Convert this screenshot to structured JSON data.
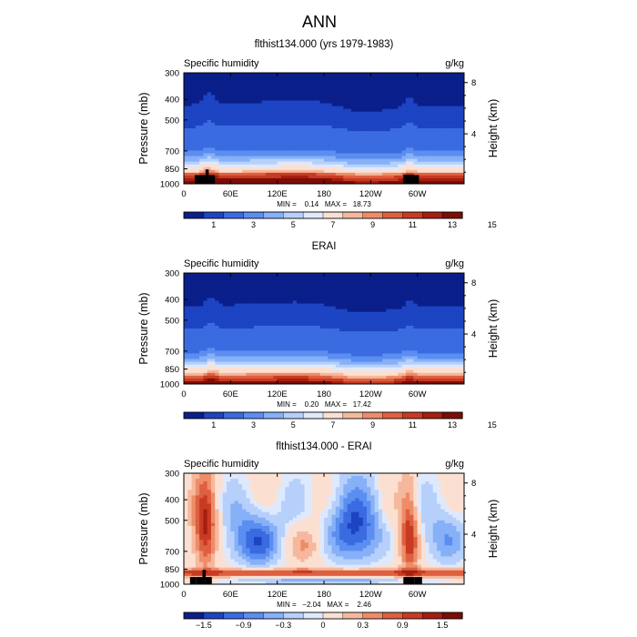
{
  "page": {
    "title": "ANN"
  },
  "chart_data": [
    {
      "type": "heatmap",
      "title": "flthist134.000 (yrs 1979-1983)",
      "variable": "Specific humidity",
      "units": "g/kg",
      "ylabel": "Pressure (mb)",
      "ylabel2": "Height (km)",
      "x_ticks": [
        "0",
        "60E",
        "120E",
        "180",
        "120W",
        "60W"
      ],
      "x_tick_values": [
        0,
        60,
        120,
        180,
        240,
        300
      ],
      "xlim": [
        0,
        360
      ],
      "y_ticks": [
        "300",
        "400",
        "500",
        "700",
        "850",
        "1000"
      ],
      "y_tick_values": [
        300,
        400,
        500,
        700,
        850,
        1000
      ],
      "ylim": [
        1000,
        300
      ],
      "height_ticks": [
        "4",
        "8"
      ],
      "height_tick_values": [
        4,
        8
      ],
      "stats": "MIN =    0.14   MAX =   18.73",
      "min": 0.14,
      "max": 18.73,
      "colorbar_labels": [
        "1",
        "3",
        "5",
        "7",
        "9",
        "11",
        "13",
        "15"
      ],
      "colorbar_colors": [
        "#0a1f8a",
        "#1d44c2",
        "#3a6be0",
        "#5b8ef0",
        "#86b0f7",
        "#b6d0fb",
        "#dfe9fd",
        "#fbe0d2",
        "#f6b89c",
        "#ee8c68",
        "#de6040",
        "#c83b22",
        "#a51f10",
        "#7d0d05"
      ],
      "land_x": [
        [
          14,
          20
        ],
        [
          20,
          28
        ],
        [
          28,
          32
        ],
        [
          32,
          40
        ],
        [
          282,
          296
        ],
        [
          296,
          302
        ]
      ],
      "land_p": [
        [
          1000,
          910
        ],
        [
          1000,
          910
        ],
        [
          1000,
          855
        ],
        [
          1000,
          910
        ],
        [
          1000,
          905
        ],
        [
          1000,
          910
        ]
      ]
    },
    {
      "type": "heatmap",
      "title": "ERAI",
      "variable": "Specific humidity",
      "units": "g/kg",
      "ylabel": "Pressure (mb)",
      "ylabel2": "Height (km)",
      "x_ticks": [
        "0",
        "60E",
        "120E",
        "180",
        "120W",
        "60W"
      ],
      "x_tick_values": [
        0,
        60,
        120,
        180,
        240,
        300
      ],
      "xlim": [
        0,
        360
      ],
      "y_ticks": [
        "300",
        "400",
        "500",
        "700",
        "850",
        "1000"
      ],
      "y_tick_values": [
        300,
        400,
        500,
        700,
        850,
        1000
      ],
      "ylim": [
        1000,
        300
      ],
      "height_ticks": [
        "4",
        "8"
      ],
      "height_tick_values": [
        4,
        8
      ],
      "stats": "MIN =    0.20   MAX =   17.42",
      "min": 0.2,
      "max": 17.42,
      "colorbar_labels": [
        "1",
        "3",
        "5",
        "7",
        "9",
        "11",
        "13",
        "15"
      ],
      "colorbar_colors": [
        "#0a1f8a",
        "#1d44c2",
        "#3a6be0",
        "#5b8ef0",
        "#86b0f7",
        "#b6d0fb",
        "#dfe9fd",
        "#fbe0d2",
        "#f6b89c",
        "#ee8c68",
        "#de6040",
        "#c83b22",
        "#a51f10",
        "#7d0d05"
      ],
      "land_x": [],
      "land_p": []
    },
    {
      "type": "heatmap",
      "title": "flthist134.000 - ERAI",
      "variable": "Specific humidity",
      "units": "g/kg",
      "ylabel": "Pressure (mb)",
      "ylabel2": "Height (km)",
      "x_ticks": [
        "0",
        "60E",
        "120E",
        "180",
        "120W",
        "60W"
      ],
      "x_tick_values": [
        0,
        60,
        120,
        180,
        240,
        300
      ],
      "xlim": [
        0,
        360
      ],
      "y_ticks": [
        "300",
        "400",
        "500",
        "700",
        "850",
        "1000"
      ],
      "y_tick_values": [
        300,
        400,
        500,
        700,
        850,
        1000
      ],
      "ylim": [
        1000,
        300
      ],
      "height_ticks": [
        "4",
        "8"
      ],
      "height_tick_values": [
        4,
        8
      ],
      "stats": "MIN =   −2.04   MAX =    2.46",
      "min": -2.04,
      "max": 2.46,
      "colorbar_labels": [
        "−1.5",
        "−0.9",
        "−0.3",
        "0",
        "0.3",
        "0.9",
        "1.5"
      ],
      "colorbar_colors": [
        "#0a1f8a",
        "#1d44c2",
        "#3a6be0",
        "#5b8ef0",
        "#86b0f7",
        "#b6d0fb",
        "#dfe9fd",
        "#fbe0d2",
        "#f6b89c",
        "#ee8c68",
        "#de6040",
        "#c83b22",
        "#a51f10",
        "#7d0d05"
      ],
      "land_x": [
        [
          8,
          16
        ],
        [
          16,
          24
        ],
        [
          24,
          28
        ],
        [
          28,
          36
        ],
        [
          282,
          296
        ],
        [
          296,
          306
        ]
      ],
      "land_p": [
        [
          1000,
          925
        ],
        [
          1000,
          925
        ],
        [
          1000,
          855
        ],
        [
          1000,
          925
        ],
        [
          1000,
          925
        ],
        [
          1000,
          925
        ]
      ]
    }
  ]
}
